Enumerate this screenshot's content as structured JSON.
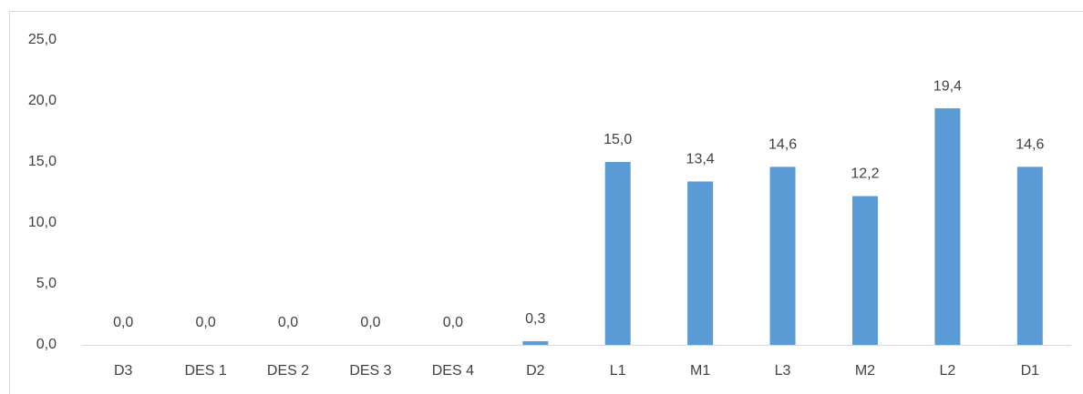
{
  "chart_data": {
    "type": "bar",
    "categories": [
      "D3",
      "DES 1",
      "DES 2",
      "DES 3",
      "DES 4",
      "D2",
      "L1",
      "M1",
      "L3",
      "M2",
      "L2",
      "D1"
    ],
    "values": [
      0,
      0,
      0,
      0,
      0,
      0.3,
      15.0,
      13.4,
      14.6,
      12.2,
      19.4,
      14.6
    ],
    "value_labels": [
      "0,0",
      "0,0",
      "0,0",
      "0,0",
      "0,0",
      "0,3",
      "15,0",
      "13,4",
      "14,6",
      "12,2",
      "19,4",
      "14,6"
    ],
    "color": "#5b9bd5",
    "ylim": [
      0,
      25
    ],
    "yticks": [
      {
        "value": 0,
        "label": "0,0"
      },
      {
        "value": 5,
        "label": "5,0"
      },
      {
        "value": 10,
        "label": "10,0"
      },
      {
        "value": 15,
        "label": "15,0"
      },
      {
        "value": 20,
        "label": "20,0"
      },
      {
        "value": 25,
        "label": "25,0"
      }
    ],
    "grid": false
  }
}
